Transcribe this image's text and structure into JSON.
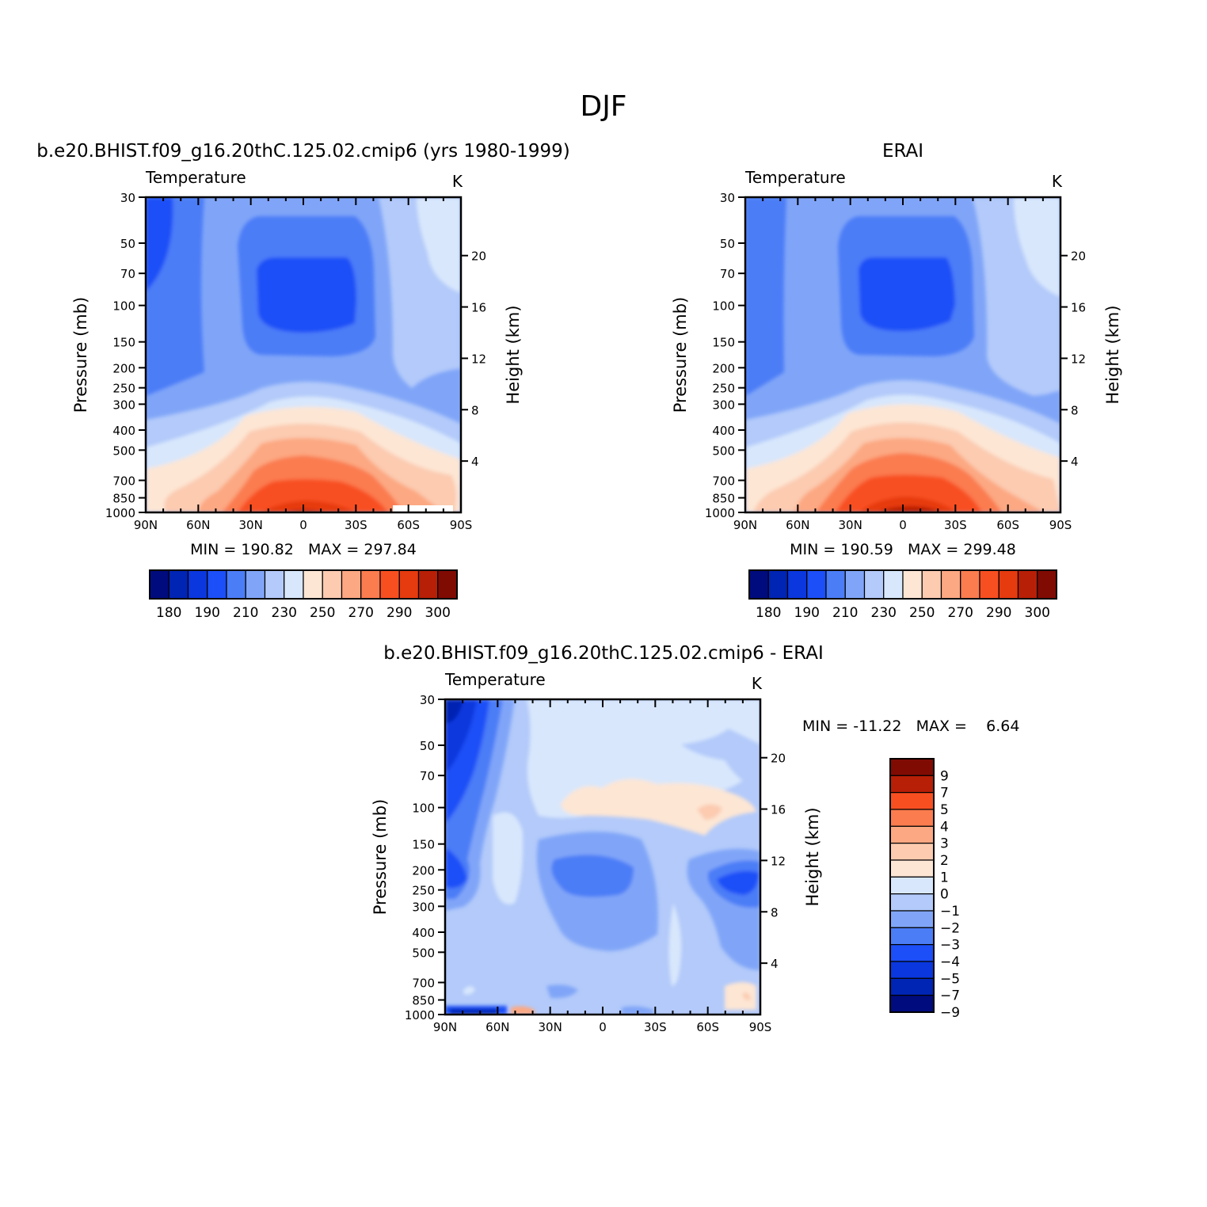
{
  "figure_title": "DJF",
  "chart_data": [
    {
      "type": "heatmap",
      "panel": "model",
      "title": "b.e20.BHIST.f09_g16.20thC.125.02.cmip6 (yrs 1980-1999)",
      "left_label": "Temperature",
      "right_label": "K",
      "xlabel": "",
      "ylabel": "Pressure (mb)",
      "y2label": "Height (km)",
      "x_ticks": [
        "90N",
        "60N",
        "30N",
        "0",
        "30S",
        "60S",
        "90S"
      ],
      "y_ticks": [
        30,
        50,
        70,
        100,
        150,
        200,
        250,
        300,
        400,
        500,
        700,
        850,
        1000
      ],
      "y2_ticks": [
        4,
        8,
        12,
        16,
        20
      ],
      "ylim": [
        1000,
        30
      ],
      "y_scale": "log",
      "stats": "MIN = 190.82   MAX = 297.84",
      "colorbar": {
        "orientation": "horizontal",
        "tick_labels": [
          "180",
          "190",
          "210",
          "230",
          "250",
          "270",
          "290",
          "300"
        ],
        "colors": [
          "#000c7d",
          "#0024b3",
          "#0a37de",
          "#1c4ff7",
          "#4b7df7",
          "#80a5f8",
          "#b3cafa",
          "#d8e7fc",
          "#fde6d4",
          "#fccbb0",
          "#fca882",
          "#fb7c4f",
          "#f84f21",
          "#e63a0f",
          "#b71f06",
          "#800b03"
        ]
      }
    },
    {
      "type": "heatmap",
      "panel": "obs",
      "title": "ERAI",
      "left_label": "Temperature",
      "right_label": "K",
      "xlabel": "",
      "ylabel": "Pressure (mb)",
      "y2label": "Height (km)",
      "x_ticks": [
        "90N",
        "60N",
        "30N",
        "0",
        "30S",
        "60S",
        "90S"
      ],
      "y_ticks": [
        30,
        50,
        70,
        100,
        150,
        200,
        250,
        300,
        400,
        500,
        700,
        850,
        1000
      ],
      "y2_ticks": [
        4,
        8,
        12,
        16,
        20
      ],
      "ylim": [
        1000,
        30
      ],
      "y_scale": "log",
      "stats": "MIN = 190.59   MAX = 299.48",
      "colorbar": {
        "orientation": "horizontal",
        "tick_labels": [
          "180",
          "190",
          "210",
          "230",
          "250",
          "270",
          "290",
          "300"
        ],
        "colors": [
          "#000c7d",
          "#0024b3",
          "#0a37de",
          "#1c4ff7",
          "#4b7df7",
          "#80a5f8",
          "#b3cafa",
          "#d8e7fc",
          "#fde6d4",
          "#fccbb0",
          "#fca882",
          "#fb7c4f",
          "#f84f21",
          "#e63a0f",
          "#b71f06",
          "#800b03"
        ]
      }
    },
    {
      "type": "heatmap",
      "panel": "diff",
      "title": "b.e20.BHIST.f09_g16.20thC.125.02.cmip6 - ERAI",
      "left_label": "Temperature",
      "right_label": "K",
      "xlabel": "",
      "ylabel": "Pressure (mb)",
      "y2label": "Height (km)",
      "x_ticks": [
        "90N",
        "60N",
        "30N",
        "0",
        "30S",
        "60S",
        "90S"
      ],
      "y_ticks": [
        30,
        50,
        70,
        100,
        150,
        200,
        250,
        300,
        400,
        500,
        700,
        850,
        1000
      ],
      "y2_ticks": [
        4,
        8,
        12,
        16,
        20
      ],
      "ylim": [
        1000,
        30
      ],
      "y_scale": "log",
      "stats": "MIN = -11.22   MAX =    6.64",
      "colorbar": {
        "orientation": "vertical",
        "tick_labels": [
          "9",
          "7",
          "5",
          "4",
          "3",
          "2",
          "1",
          "0",
          "-1",
          "-2",
          "-3",
          "-4",
          "-5",
          "-7",
          "-9"
        ],
        "colors": [
          "#800b03",
          "#b71f06",
          "#f84f21",
          "#fb7c4f",
          "#fca882",
          "#fccbb0",
          "#fde6d4",
          "#d8e7fc",
          "#b3cafa",
          "#80a5f8",
          "#4b7df7",
          "#1c4ff7",
          "#0a37de",
          "#0024b3",
          "#000c7d"
        ]
      }
    }
  ]
}
